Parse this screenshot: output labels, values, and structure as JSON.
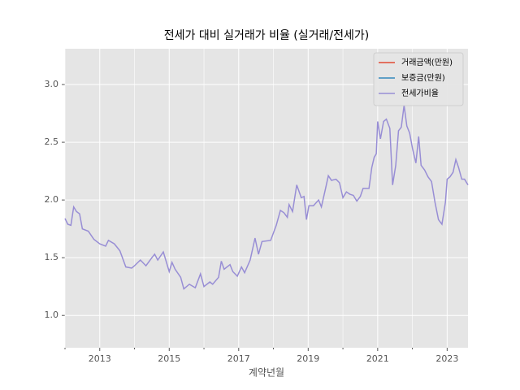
{
  "chart_data": {
    "type": "line",
    "title": "전세가 대비 실거래가 비율 (실거래/전세가)",
    "x_label": "계약년월",
    "xlim": [
      2012.0,
      2023.6
    ],
    "ylim": [
      0.72,
      3.31
    ],
    "xticks": [
      2013,
      2015,
      2017,
      2019,
      2021,
      2023
    ],
    "xminorticks": [
      2012,
      2014,
      2016,
      2018,
      2020,
      2022
    ],
    "yticks": [
      {
        "value": 1,
        "label": "1.0"
      },
      {
        "value": 1.5,
        "label": "1.5"
      },
      {
        "value": 2,
        "label": "2.0"
      },
      {
        "value": 2.5,
        "label": "2.5"
      },
      {
        "value": 3,
        "label": "3.0"
      }
    ],
    "grid": true,
    "legend": "upper right",
    "series": [
      {
        "name": "거래금액(만원)",
        "color": "#e24a33",
        "x": [],
        "values": []
      },
      {
        "name": "보증금(만원)",
        "color": "#348abd",
        "x": [],
        "values": []
      },
      {
        "name": "전세가비율",
        "color": "#988ed5",
        "x": [
          2012.0,
          2012.08,
          2012.17,
          2012.25,
          2012.33,
          2012.42,
          2012.5,
          2012.67,
          2012.83,
          2013.0,
          2013.17,
          2013.25,
          2013.42,
          2013.58,
          2013.75,
          2013.92,
          2014.0,
          2014.17,
          2014.33,
          2014.5,
          2014.58,
          2014.67,
          2014.83,
          2015.0,
          2015.08,
          2015.17,
          2015.33,
          2015.42,
          2015.58,
          2015.75,
          2015.9,
          2016.0,
          2016.17,
          2016.25,
          2016.42,
          2016.5,
          2016.58,
          2016.75,
          2016.83,
          2016.96,
          2017.08,
          2017.17,
          2017.33,
          2017.47,
          2017.57,
          2017.67,
          2017.92,
          2018.08,
          2018.2,
          2018.3,
          2018.4,
          2018.45,
          2018.55,
          2018.67,
          2018.8,
          2018.88,
          2018.95,
          2019.02,
          2019.15,
          2019.3,
          2019.38,
          2019.5,
          2019.58,
          2019.67,
          2019.8,
          2019.9,
          2020.0,
          2020.1,
          2020.2,
          2020.3,
          2020.4,
          2020.5,
          2020.58,
          2020.75,
          2020.83,
          2020.9,
          2020.96,
          2021.0,
          2021.08,
          2021.17,
          2021.25,
          2021.35,
          2021.43,
          2021.52,
          2021.6,
          2021.68,
          2021.76,
          2021.84,
          2021.92,
          2022.0,
          2022.1,
          2022.18,
          2022.25,
          2022.35,
          2022.45,
          2022.55,
          2022.65,
          2022.75,
          2022.85,
          2022.95,
          2023.0,
          2023.08,
          2023.17,
          2023.25,
          2023.33,
          2023.42,
          2023.5,
          2023.6
        ],
        "values": [
          1.84,
          1.79,
          1.78,
          1.94,
          1.9,
          1.88,
          1.75,
          1.73,
          1.66,
          1.62,
          1.6,
          1.65,
          1.62,
          1.56,
          1.42,
          1.41,
          1.43,
          1.48,
          1.43,
          1.5,
          1.53,
          1.48,
          1.55,
          1.38,
          1.46,
          1.4,
          1.33,
          1.23,
          1.27,
          1.24,
          1.36,
          1.25,
          1.29,
          1.27,
          1.33,
          1.47,
          1.4,
          1.44,
          1.38,
          1.34,
          1.42,
          1.37,
          1.48,
          1.67,
          1.53,
          1.64,
          1.65,
          1.78,
          1.91,
          1.89,
          1.85,
          1.96,
          1.9,
          2.13,
          2.02,
          2.03,
          1.83,
          1.95,
          1.95,
          2.0,
          1.94,
          2.1,
          2.21,
          2.17,
          2.18,
          2.15,
          2.02,
          2.07,
          2.05,
          2.04,
          1.99,
          2.03,
          2.1,
          2.1,
          2.28,
          2.37,
          2.4,
          2.68,
          2.53,
          2.68,
          2.7,
          2.62,
          2.13,
          2.3,
          2.6,
          2.63,
          2.82,
          2.64,
          2.58,
          2.45,
          2.32,
          2.55,
          2.3,
          2.26,
          2.2,
          2.16,
          1.98,
          1.83,
          1.79,
          1.98,
          2.18,
          2.2,
          2.24,
          2.35,
          2.28,
          2.18,
          2.18,
          2.13
        ]
      }
    ]
  }
}
